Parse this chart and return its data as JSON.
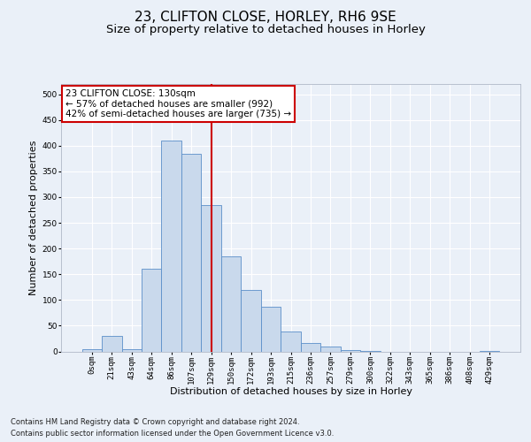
{
  "title": "23, CLIFTON CLOSE, HORLEY, RH6 9SE",
  "subtitle": "Size of property relative to detached houses in Horley",
  "xlabel": "Distribution of detached houses by size in Horley",
  "ylabel": "Number of detached properties",
  "categories": [
    "0sqm",
    "21sqm",
    "43sqm",
    "64sqm",
    "86sqm",
    "107sqm",
    "129sqm",
    "150sqm",
    "172sqm",
    "193sqm",
    "215sqm",
    "236sqm",
    "257sqm",
    "279sqm",
    "300sqm",
    "322sqm",
    "343sqm",
    "365sqm",
    "386sqm",
    "408sqm",
    "429sqm"
  ],
  "values": [
    5,
    30,
    5,
    160,
    410,
    385,
    285,
    185,
    120,
    87,
    38,
    17,
    9,
    2,
    1,
    0,
    0,
    0,
    0,
    0,
    1
  ],
  "bar_color": "#c9d9ec",
  "bar_edge_color": "#5b8fc9",
  "vline_x": 6,
  "vline_color": "#cc0000",
  "annotation_text": "23 CLIFTON CLOSE: 130sqm\n← 57% of detached houses are smaller (992)\n42% of semi-detached houses are larger (735) →",
  "annotation_box_color": "#ffffff",
  "annotation_box_edge": "#cc0000",
  "ylim": [
    0,
    520
  ],
  "yticks": [
    0,
    50,
    100,
    150,
    200,
    250,
    300,
    350,
    400,
    450,
    500
  ],
  "footer1": "Contains HM Land Registry data © Crown copyright and database right 2024.",
  "footer2": "Contains public sector information licensed under the Open Government Licence v3.0.",
  "background_color": "#eaf0f8",
  "plot_background": "#eaf0f8",
  "grid_color": "#ffffff",
  "title_fontsize": 11,
  "subtitle_fontsize": 9.5,
  "ylabel_fontsize": 8,
  "xlabel_fontsize": 8,
  "tick_fontsize": 6.5,
  "annotation_fontsize": 7.5,
  "footer_fontsize": 6
}
